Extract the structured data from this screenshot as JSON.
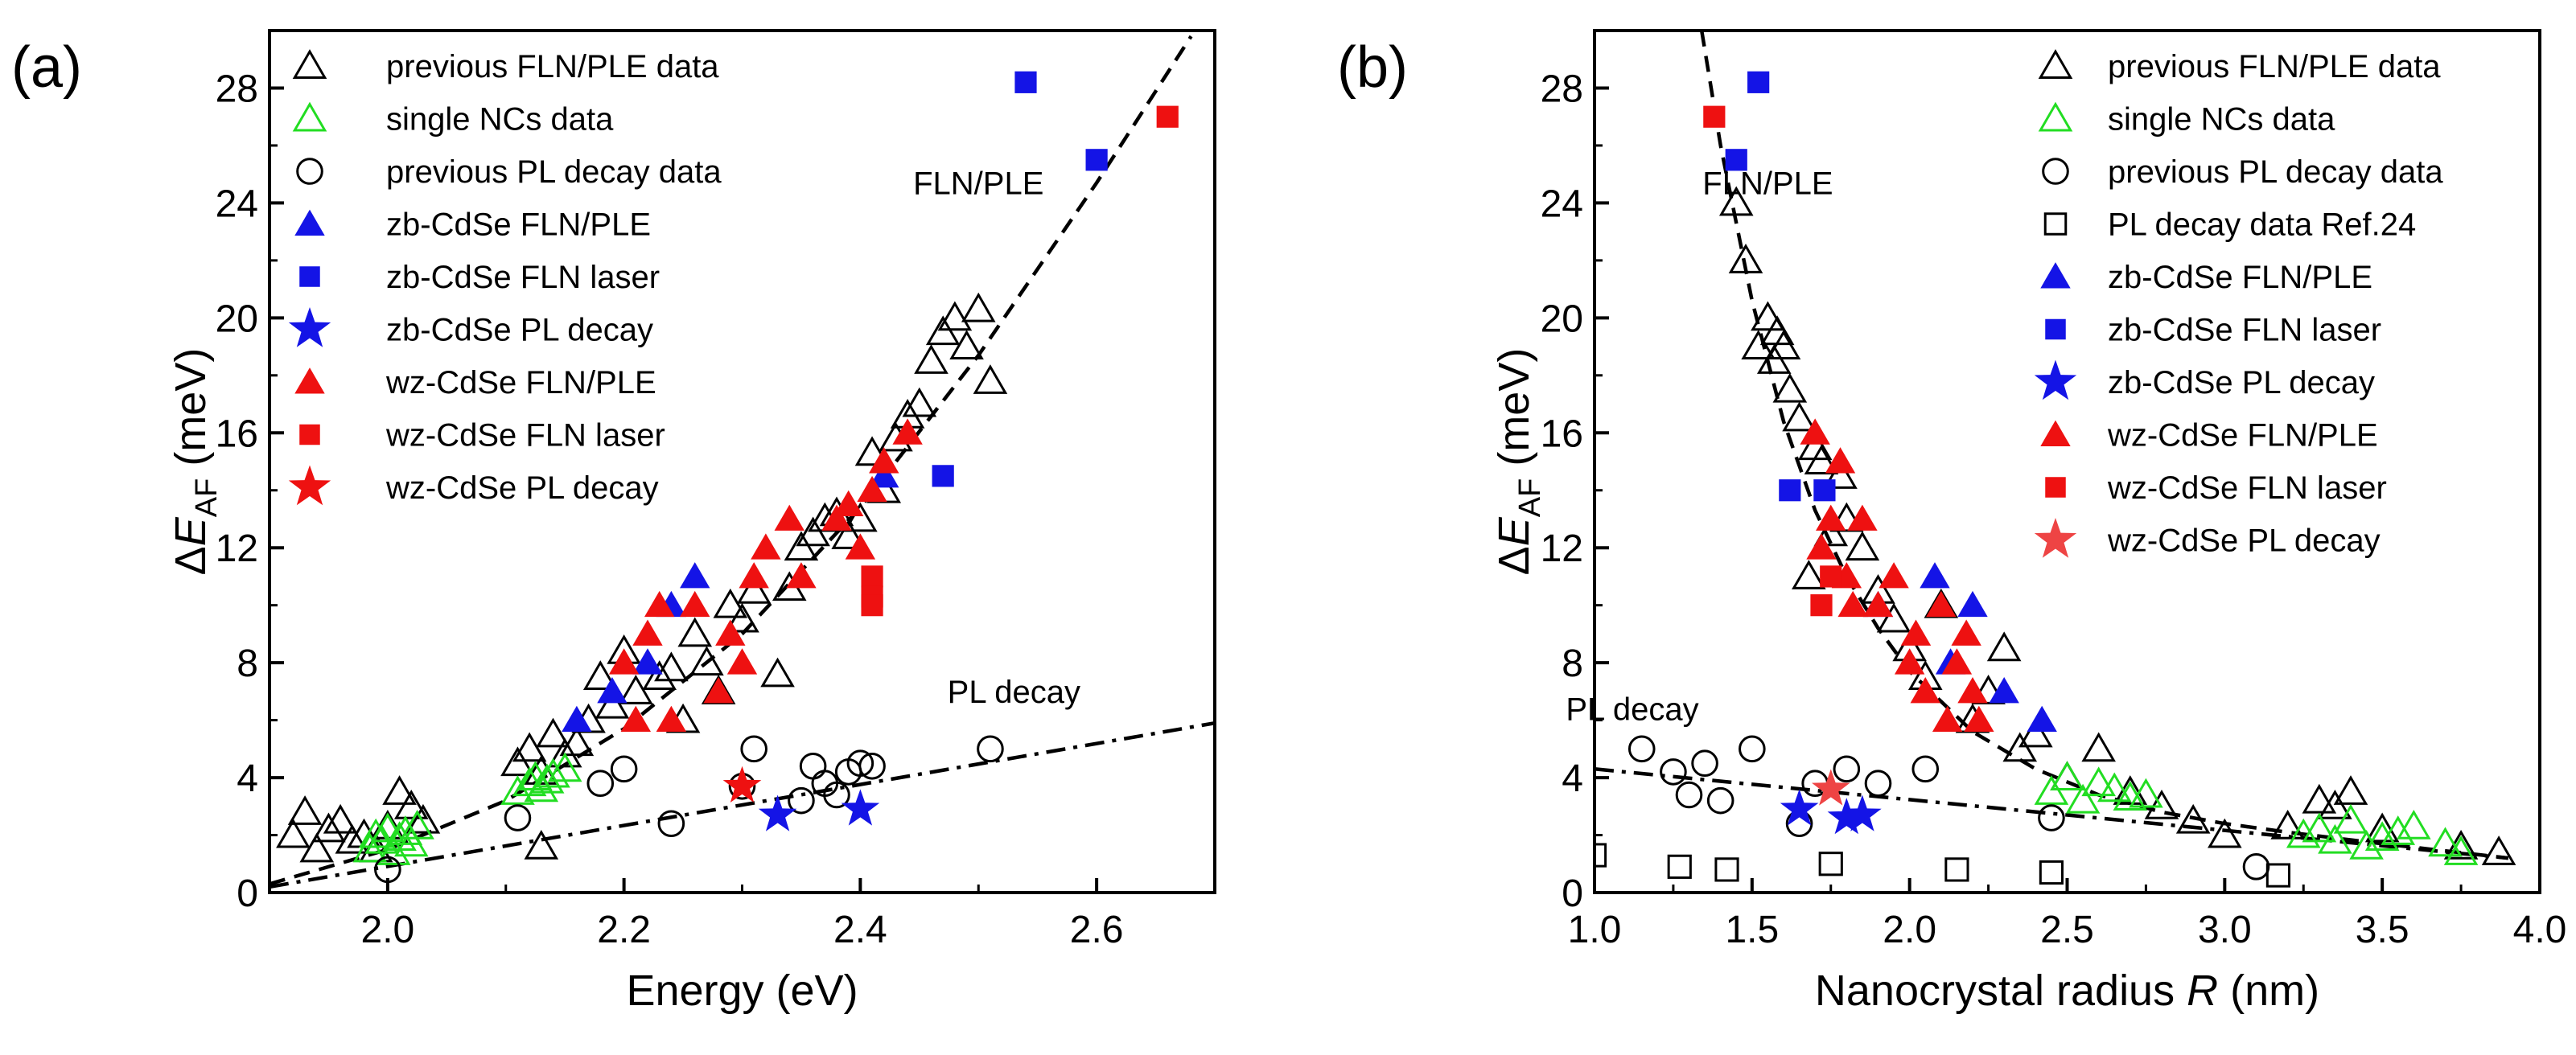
{
  "chart_data": [
    {
      "type": "scatter",
      "panel_label": "(a)",
      "xlabel": "Energy (eV)",
      "ylabel": "ΔE_AF (meV)",
      "xlim": [
        1.9,
        2.7
      ],
      "ylim": [
        0,
        30
      ],
      "xticks": [
        2.0,
        2.2,
        2.4,
        2.6
      ],
      "xtick_labels": [
        "2.0",
        "2.2",
        "2.4",
        "2.6"
      ],
      "yticks": [
        0,
        4,
        8,
        12,
        16,
        20,
        24,
        28
      ],
      "ytick_labels": [
        "0",
        "4",
        "8",
        "12",
        "16",
        "20",
        "24",
        "28"
      ],
      "legend_position": "top-left",
      "annotations": [
        {
          "text": "FLN/PLE",
          "x": 2.5,
          "y": 24.3
        },
        {
          "text": "PL decay",
          "x": 2.53,
          "y": 6.6
        }
      ],
      "fits": [
        {
          "name": "FLN/PLE fit",
          "style": "dashed",
          "x": [
            1.9,
            2.0,
            2.1,
            2.2,
            2.3,
            2.4,
            2.5,
            2.6,
            2.68
          ],
          "y": [
            0.3,
            1.5,
            3.2,
            5.7,
            9.0,
            13.4,
            18.7,
            24.7,
            29.8
          ]
        },
        {
          "name": "PL decay fit",
          "style": "dashdot",
          "x": [
            1.9,
            2.7
          ],
          "y": [
            0.2,
            5.9
          ]
        }
      ],
      "series": [
        {
          "name": "previous FLN/PLE data",
          "marker": "triangle-open",
          "color": "#000000",
          "x": [
            1.92,
            1.93,
            1.94,
            1.95,
            1.96,
            1.97,
            1.98,
            1.99,
            2.0,
            2.01,
            2.02,
            2.03,
            2.11,
            2.12,
            2.13,
            2.14,
            2.15,
            2.16,
            2.17,
            2.18,
            2.19,
            2.2,
            2.21,
            2.23,
            2.24,
            2.25,
            2.26,
            2.27,
            2.28,
            2.29,
            2.3,
            2.31,
            2.33,
            2.34,
            2.35,
            2.36,
            2.37,
            2.38,
            2.39,
            2.4,
            2.41,
            2.42,
            2.43,
            2.44,
            2.45,
            2.46,
            2.47,
            2.48,
            2.49,
            2.5,
            2.51,
            2.13
          ],
          "y": [
            2.0,
            2.8,
            1.5,
            2.2,
            2.5,
            1.8,
            2.0,
            1.5,
            2.3,
            3.5,
            3.0,
            2.5,
            4.5,
            5.0,
            4.2,
            5.5,
            4.8,
            5.2,
            6.0,
            7.5,
            6.5,
            8.4,
            7.0,
            7.5,
            7.8,
            6.0,
            9.0,
            8.0,
            7.0,
            10.0,
            9.5,
            10.5,
            7.6,
            10.6,
            12.0,
            12.5,
            13.0,
            13.2,
            12.4,
            13.0,
            15.3,
            14.0,
            15.8,
            16.6,
            17.0,
            18.5,
            19.5,
            20.0,
            19.0,
            20.3,
            17.8,
            1.6
          ]
        },
        {
          "name": "single NCs data",
          "marker": "triangle-open",
          "color": "#22dd22",
          "x": [
            1.985,
            1.99,
            1.995,
            2.0,
            2.005,
            2.01,
            2.015,
            2.02,
            2.025,
            2.11,
            2.12,
            2.125,
            2.13,
            2.135,
            2.14,
            2.15
          ],
          "y": [
            1.5,
            2.0,
            1.8,
            2.2,
            1.4,
            1.9,
            2.1,
            1.7,
            2.3,
            3.5,
            3.8,
            4.0,
            3.6,
            3.9,
            4.1,
            4.3
          ]
        },
        {
          "name": "previous PL decay data",
          "marker": "circle-open",
          "color": "#000000",
          "x": [
            2.0,
            2.11,
            2.18,
            2.2,
            2.24,
            2.3,
            2.31,
            2.35,
            2.36,
            2.37,
            2.38,
            2.39,
            2.4,
            2.41,
            2.51
          ],
          "y": [
            0.8,
            2.6,
            3.8,
            4.3,
            2.4,
            3.7,
            5.0,
            3.2,
            4.4,
            3.8,
            3.4,
            4.2,
            4.5,
            4.4,
            5.0
          ]
        },
        {
          "name": "zb-CdSe FLN/PLE",
          "marker": "triangle-filled",
          "color": "#1414e6",
          "x": [
            2.16,
            2.19,
            2.22,
            2.24,
            2.26,
            2.42
          ],
          "y": [
            6.0,
            7.0,
            8.0,
            10.0,
            11.0,
            14.5
          ]
        },
        {
          "name": "zb-CdSe FLN laser",
          "marker": "square-filled",
          "color": "#1414e6",
          "x": [
            2.47,
            2.54,
            2.6
          ],
          "y": [
            14.5,
            28.2,
            25.5
          ]
        },
        {
          "name": "zb-CdSe PL decay",
          "marker": "star-filled",
          "color": "#1414e6",
          "x": [
            2.33,
            2.4
          ],
          "y": [
            2.7,
            2.9
          ]
        },
        {
          "name": "wz-CdSe FLN/PLE",
          "marker": "triangle-filled",
          "color": "#ee1111",
          "x": [
            2.2,
            2.21,
            2.22,
            2.23,
            2.24,
            2.26,
            2.28,
            2.29,
            2.3,
            2.31,
            2.32,
            2.34,
            2.35,
            2.38,
            2.39,
            2.4,
            2.41,
            2.42,
            2.44
          ],
          "y": [
            8.0,
            6.0,
            9.0,
            10.0,
            6.0,
            10.0,
            7.0,
            9.0,
            8.0,
            11.0,
            12.0,
            13.0,
            11.0,
            13.0,
            13.5,
            12.0,
            14.0,
            15.0,
            16.0
          ]
        },
        {
          "name": "wz-CdSe FLN laser",
          "marker": "square-filled",
          "color": "#ee1111",
          "x": [
            2.41,
            2.41,
            2.41,
            2.66
          ],
          "y": [
            11.0,
            10.3,
            10.0,
            27.0
          ]
        },
        {
          "name": "wz-CdSe PL decay",
          "marker": "star-filled",
          "color": "#ee1111",
          "x": [
            2.3
          ],
          "y": [
            3.7
          ]
        }
      ]
    },
    {
      "type": "scatter",
      "panel_label": "(b)",
      "xlabel": "Nanocrystal radius R (nm)",
      "ylabel": "ΔE_AF (meV)",
      "xlim": [
        1.0,
        4.0
      ],
      "ylim": [
        0,
        30
      ],
      "xticks": [
        1.0,
        1.5,
        2.0,
        2.5,
        3.0,
        3.5,
        4.0
      ],
      "xtick_labels": [
        "1.0",
        "1.5",
        "2.0",
        "2.5",
        "3.0",
        "3.5",
        "4.0"
      ],
      "yticks": [
        0,
        4,
        8,
        12,
        16,
        20,
        24,
        28
      ],
      "ytick_labels": [
        "0",
        "4",
        "8",
        "12",
        "16",
        "20",
        "24",
        "28"
      ],
      "legend_position": "top-right",
      "annotations": [
        {
          "text": "FLN/PLE",
          "x": 1.55,
          "y": 24.3
        },
        {
          "text": "PL decay",
          "x": 1.12,
          "y": 6.0
        }
      ],
      "fits": [
        {
          "name": "FLN/PLE fit",
          "style": "dashed",
          "x": [
            1.34,
            1.4,
            1.5,
            1.6,
            1.7,
            1.8,
            1.9,
            2.0,
            2.2,
            2.4,
            2.6,
            2.8,
            3.0,
            3.2,
            3.5,
            3.9
          ],
          "y": [
            30.0,
            26.0,
            20.6,
            16.4,
            13.3,
            11.0,
            9.2,
            7.7,
            5.6,
            4.3,
            3.4,
            2.8,
            2.4,
            2.1,
            1.7,
            1.2
          ]
        },
        {
          "name": "PL decay fit",
          "style": "dashdot",
          "x": [
            1.0,
            2.5,
            3.9
          ],
          "y": [
            4.3,
            2.7,
            1.2
          ]
        }
      ],
      "series": [
        {
          "name": "previous FLN/PLE data",
          "marker": "triangle-open",
          "color": "#000000",
          "x": [
            1.45,
            1.48,
            1.52,
            1.55,
            1.57,
            1.58,
            1.6,
            1.62,
            1.65,
            1.68,
            1.7,
            1.72,
            1.75,
            1.78,
            1.8,
            1.85,
            1.9,
            1.95,
            2.0,
            2.05,
            2.1,
            2.2,
            2.25,
            2.3,
            2.35,
            2.4,
            2.5,
            2.6,
            2.7,
            2.8,
            2.9,
            3.0,
            3.2,
            3.3,
            3.35,
            3.4,
            3.5,
            3.75,
            3.87
          ],
          "y": [
            24.0,
            22.0,
            19.0,
            20.0,
            18.5,
            19.5,
            19.0,
            17.5,
            16.5,
            11.0,
            15.5,
            15.0,
            12.5,
            14.5,
            13.0,
            12.0,
            10.5,
            9.5,
            8.5,
            7.5,
            10.0,
            6.0,
            7.0,
            8.5,
            5.0,
            5.5,
            4.0,
            5.0,
            3.5,
            3.0,
            2.5,
            2.0,
            2.3,
            3.2,
            3.0,
            3.5,
            2.2,
            1.6,
            1.4
          ]
        },
        {
          "name": "single NCs data",
          "marker": "triangle-open",
          "color": "#22dd22",
          "x": [
            2.45,
            2.5,
            2.55,
            2.6,
            2.65,
            2.7,
            2.75,
            3.25,
            3.3,
            3.35,
            3.4,
            3.45,
            3.5,
            3.55,
            3.6,
            3.7,
            3.75
          ],
          "y": [
            3.5,
            4.0,
            3.2,
            3.8,
            3.6,
            3.3,
            3.4,
            2.0,
            2.2,
            1.8,
            2.5,
            1.6,
            1.9,
            2.1,
            2.3,
            1.7,
            1.4
          ]
        },
        {
          "name": "previous PL decay data",
          "marker": "circle-open",
          "color": "#000000",
          "x": [
            1.15,
            1.25,
            1.3,
            1.35,
            1.4,
            1.5,
            1.65,
            1.7,
            1.8,
            1.9,
            2.05,
            2.45,
            3.1
          ],
          "y": [
            5.0,
            4.2,
            3.4,
            4.5,
            3.2,
            5.0,
            2.4,
            3.8,
            4.3,
            3.8,
            4.3,
            2.6,
            0.9
          ]
        },
        {
          "name": "PL decay data Ref.24",
          "marker": "square-open",
          "color": "#000000",
          "x": [
            1.0,
            1.27,
            1.42,
            1.75,
            2.15,
            2.45,
            3.17
          ],
          "y": [
            1.3,
            0.9,
            0.8,
            1.0,
            0.8,
            0.7,
            0.6
          ]
        },
        {
          "name": "zb-CdSe FLN/PLE",
          "marker": "triangle-filled",
          "color": "#1414e6",
          "x": [
            1.9,
            2.08,
            2.13,
            2.2,
            2.3,
            2.42
          ],
          "y": [
            10.0,
            11.0,
            8.0,
            10.0,
            7.0,
            6.0
          ]
        },
        {
          "name": "zb-CdSe FLN laser",
          "marker": "square-filled",
          "color": "#1414e6",
          "x": [
            1.45,
            1.52,
            1.62,
            1.73
          ],
          "y": [
            25.5,
            28.2,
            14.0,
            14.0
          ]
        },
        {
          "name": "zb-CdSe PL decay",
          "marker": "star-filled",
          "color": "#1414e6",
          "x": [
            1.65,
            1.8,
            1.85
          ],
          "y": [
            2.9,
            2.6,
            2.7
          ]
        },
        {
          "name": "wz-CdSe FLN/PLE",
          "marker": "triangle-filled",
          "color": "#ee1111",
          "x": [
            1.7,
            1.75,
            1.78,
            1.8,
            1.85,
            1.9,
            1.95,
            2.0,
            2.02,
            2.05,
            2.1,
            2.12,
            2.15,
            2.18,
            2.2,
            2.22,
            1.72,
            1.82
          ],
          "y": [
            16.0,
            13.0,
            15.0,
            11.0,
            13.0,
            10.0,
            11.0,
            8.0,
            9.0,
            7.0,
            10.0,
            6.0,
            8.0,
            9.0,
            7.0,
            6.0,
            12.0,
            10.0
          ]
        },
        {
          "name": "wz-CdSe FLN laser",
          "marker": "square-filled",
          "color": "#ee1111",
          "x": [
            1.38,
            1.72,
            1.75
          ],
          "y": [
            27.0,
            10.0,
            11.0
          ]
        },
        {
          "name": "wz-CdSe PL decay",
          "marker": "star-filled",
          "color": "#ee4444",
          "x": [
            1.75
          ],
          "y": [
            3.6
          ]
        }
      ]
    }
  ]
}
